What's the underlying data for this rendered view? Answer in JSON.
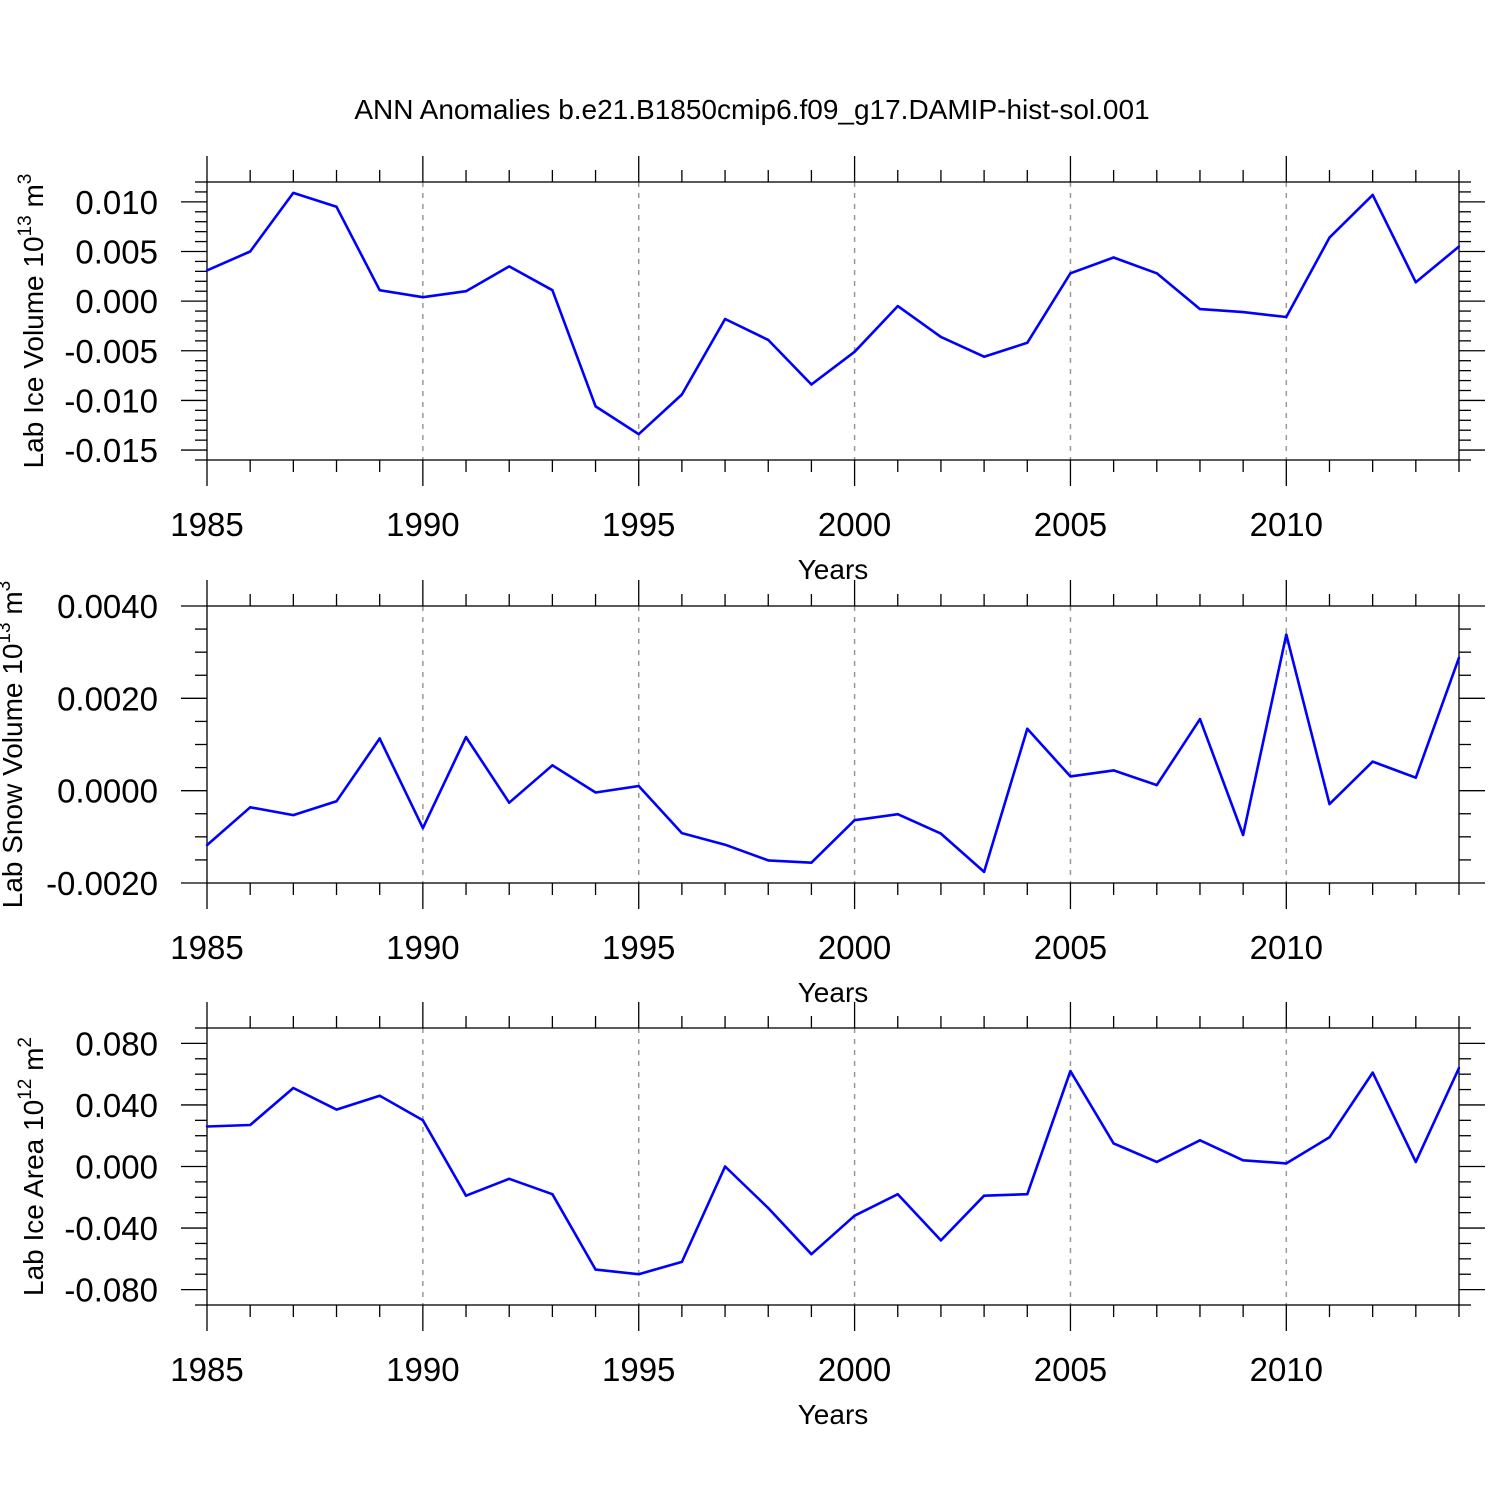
{
  "title": "ANN Anomalies b.e21.B1850cmip6.f09_g17.DAMIP-hist-sol.001",
  "colors": {
    "line": "#0000ff",
    "axis": "#000000",
    "grid": "#999999"
  },
  "chart_data": [
    {
      "type": "line",
      "ylabel": "Lab Ice Volume 10",
      "ylabel_sup": "13",
      "ylabel_unit": " m",
      "ylabel_unit_sup": "3",
      "xlabel": "Years",
      "xlim": [
        1985,
        2014
      ],
      "ylim": [
        -0.016,
        0.012
      ],
      "yticks": [
        0.01,
        0.005,
        0.0,
        -0.005,
        -0.01,
        -0.015
      ],
      "ytick_labels": [
        "0.010",
        "0.005",
        "0.000",
        "-0.005",
        "-0.010",
        "-0.015"
      ],
      "yminor_step": 0.001,
      "xticks": [
        1985,
        1990,
        1995,
        2000,
        2005,
        2010
      ],
      "xtick_labels": [
        "1985",
        "1990",
        "1995",
        "2000",
        "2005",
        "2010"
      ],
      "x": [
        1985,
        1986,
        1987,
        1988,
        1989,
        1990,
        1991,
        1992,
        1993,
        1994,
        1995,
        1996,
        1997,
        1998,
        1999,
        2000,
        2001,
        2002,
        2003,
        2004,
        2005,
        2006,
        2007,
        2008,
        2009,
        2010,
        2011,
        2012,
        2013,
        2014
      ],
      "values": [
        0.0031,
        0.005,
        0.0109,
        0.0095,
        0.0011,
        0.0004,
        0.001,
        0.0035,
        0.0011,
        -0.0106,
        -0.0134,
        -0.0094,
        -0.0018,
        -0.0039,
        -0.0084,
        -0.0051,
        -0.0005,
        -0.0036,
        -0.0056,
        -0.0042,
        0.0028,
        0.0044,
        0.0028,
        -0.0008,
        -0.0011,
        -0.0016,
        0.0064,
        0.0107,
        0.0019,
        0.0055
      ]
    },
    {
      "type": "line",
      "ylabel": "Lab Snow Volume 10",
      "ylabel_sup": "13",
      "ylabel_unit": " m",
      "ylabel_unit_sup": "3",
      "xlabel": "Years",
      "xlim": [
        1985,
        2014
      ],
      "ylim": [
        -0.002,
        0.004
      ],
      "yticks": [
        0.004,
        0.002,
        0.0,
        -0.002
      ],
      "ytick_labels": [
        "0.0040",
        "0.0020",
        "0.0000",
        "-0.0020"
      ],
      "yminor_step": 0.0005,
      "xticks": [
        1985,
        1990,
        1995,
        2000,
        2005,
        2010
      ],
      "xtick_labels": [
        "1985",
        "1990",
        "1995",
        "2000",
        "2005",
        "2010"
      ],
      "x": [
        1985,
        1986,
        1987,
        1988,
        1989,
        1990,
        1991,
        1992,
        1993,
        1994,
        1995,
        1996,
        1997,
        1998,
        1999,
        2000,
        2001,
        2002,
        2003,
        2004,
        2005,
        2006,
        2007,
        2008,
        2009,
        2010,
        2011,
        2012,
        2013,
        2014
      ],
      "values": [
        -0.00118,
        -0.00036,
        -0.00053,
        -0.00023,
        0.00113,
        -0.00081,
        0.00116,
        -0.00026,
        0.00055,
        -4e-05,
        0.0001,
        -0.00092,
        -0.00117,
        -0.00151,
        -0.00156,
        -0.00064,
        -0.00051,
        -0.00093,
        -0.00176,
        0.00134,
        0.00031,
        0.00044,
        0.00012,
        0.00155,
        -0.00096,
        0.00338,
        -0.00029,
        0.00063,
        0.00028,
        0.00288
      ]
    },
    {
      "type": "line",
      "ylabel": "Lab Ice Area 10",
      "ylabel_sup": "12",
      "ylabel_unit": " m",
      "ylabel_unit_sup": "2",
      "xlabel": "Years",
      "xlim": [
        1985,
        2014
      ],
      "ylim": [
        -0.09,
        0.09
      ],
      "yticks": [
        0.08,
        0.04,
        0.0,
        -0.04,
        -0.08
      ],
      "ytick_labels": [
        "0.080",
        "0.040",
        "0.000",
        "-0.040",
        "-0.080"
      ],
      "yminor_step": 0.01,
      "xticks": [
        1985,
        1990,
        1995,
        2000,
        2005,
        2010
      ],
      "xtick_labels": [
        "1985",
        "1990",
        "1995",
        "2000",
        "2005",
        "2010"
      ],
      "x": [
        1985,
        1986,
        1987,
        1988,
        1989,
        1990,
        1991,
        1992,
        1993,
        1994,
        1995,
        1996,
        1997,
        1998,
        1999,
        2000,
        2001,
        2002,
        2003,
        2004,
        2005,
        2006,
        2007,
        2008,
        2009,
        2010,
        2011,
        2012,
        2013,
        2014
      ],
      "values": [
        0.026,
        0.027,
        0.051,
        0.037,
        0.046,
        0.03,
        -0.019,
        -0.008,
        -0.018,
        -0.067,
        -0.07,
        -0.062,
        0.0,
        -0.027,
        -0.057,
        -0.032,
        -0.018,
        -0.048,
        -0.019,
        -0.018,
        0.062,
        0.015,
        0.003,
        0.017,
        0.004,
        0.002,
        0.019,
        0.061,
        0.003,
        0.064
      ]
    }
  ]
}
